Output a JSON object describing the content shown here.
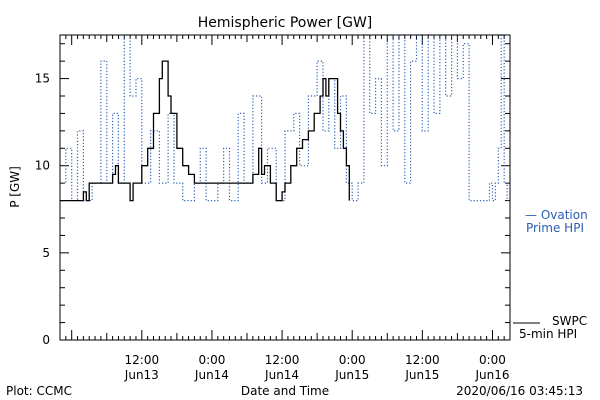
{
  "chart_data": {
    "type": "line",
    "title": "Hemispheric Power [GW]",
    "xlabel": "Date and Time",
    "ylabel": "P [GW]",
    "ylim": [
      0,
      17.5
    ],
    "yticks": [
      0,
      5,
      10,
      15
    ],
    "xlim": [
      "2020-06-12 22:00",
      "2020-06-16 03:00"
    ],
    "xticks": [
      {
        "t": "2020-06-13 12:00",
        "top": "12:00",
        "bottom": "Jun13"
      },
      {
        "t": "2020-06-14 00:00",
        "top": "0:00",
        "bottom": "Jun14"
      },
      {
        "t": "2020-06-14 12:00",
        "top": "12:00",
        "bottom": "Jun14"
      },
      {
        "t": "2020-06-15 00:00",
        "top": "0:00",
        "bottom": "Jun15"
      },
      {
        "t": "2020-06-15 12:00",
        "top": "12:00",
        "bottom": "Jun15"
      },
      {
        "t": "2020-06-16 00:00",
        "top": "0:00",
        "bottom": "Jun16"
      }
    ],
    "legend_placement": "right",
    "series": [
      {
        "name": "SWPC 5-min HPI",
        "legend_lines": [
          "SWPC",
          "5-min HPI"
        ],
        "color": "#000000",
        "style": "solid",
        "points": [
          [
            "2020-06-12 22:00",
            8
          ],
          [
            "2020-06-13 01:30",
            8
          ],
          [
            "2020-06-13 02:00",
            8.5
          ],
          [
            "2020-06-13 02:30",
            8
          ],
          [
            "2020-06-13 03:00",
            9
          ],
          [
            "2020-06-13 06:30",
            9
          ],
          [
            "2020-06-13 07:00",
            9.5
          ],
          [
            "2020-06-13 07:30",
            10
          ],
          [
            "2020-06-13 08:00",
            9
          ],
          [
            "2020-06-13 09:30",
            9
          ],
          [
            "2020-06-13 10:00",
            8
          ],
          [
            "2020-06-13 10:30",
            9
          ],
          [
            "2020-06-13 12:00",
            10
          ],
          [
            "2020-06-13 13:00",
            11
          ],
          [
            "2020-06-13 14:00",
            13
          ],
          [
            "2020-06-13 15:00",
            15
          ],
          [
            "2020-06-13 15:30",
            16
          ],
          [
            "2020-06-13 16:00",
            16
          ],
          [
            "2020-06-13 16:30",
            14
          ],
          [
            "2020-06-13 17:00",
            13
          ],
          [
            "2020-06-13 18:00",
            11
          ],
          [
            "2020-06-13 19:00",
            10
          ],
          [
            "2020-06-13 20:00",
            9.5
          ],
          [
            "2020-06-13 21:00",
            9
          ],
          [
            "2020-06-14 06:00",
            9
          ],
          [
            "2020-06-14 07:00",
            9.5
          ],
          [
            "2020-06-14 08:00",
            11
          ],
          [
            "2020-06-14 08:30",
            9.5
          ],
          [
            "2020-06-14 09:00",
            10
          ],
          [
            "2020-06-14 10:00",
            9
          ],
          [
            "2020-06-14 11:00",
            8
          ],
          [
            "2020-06-14 12:00",
            8.5
          ],
          [
            "2020-06-14 12:30",
            9
          ],
          [
            "2020-06-14 13:30",
            10
          ],
          [
            "2020-06-14 14:30",
            11
          ],
          [
            "2020-06-14 15:30",
            11.5
          ],
          [
            "2020-06-14 16:30",
            12
          ],
          [
            "2020-06-14 17:30",
            13
          ],
          [
            "2020-06-14 18:30",
            14
          ],
          [
            "2020-06-14 19:00",
            15
          ],
          [
            "2020-06-14 19:30",
            14
          ],
          [
            "2020-06-14 20:00",
            15
          ],
          [
            "2020-06-14 21:00",
            15
          ],
          [
            "2020-06-14 21:30",
            13
          ],
          [
            "2020-06-14 22:00",
            12
          ],
          [
            "2020-06-14 22:30",
            11
          ],
          [
            "2020-06-14 23:00",
            10
          ],
          [
            "2020-06-14 23:30",
            8
          ]
        ]
      },
      {
        "name": "Ovation Prime HPI",
        "legend_lines": [
          "— Ovation",
          "Prime HPI"
        ],
        "color": "#2b5fb3",
        "style": "dotted",
        "points": [
          [
            "2020-06-12 22:00",
            9
          ],
          [
            "2020-06-12 23:00",
            11
          ],
          [
            "2020-06-13 00:00",
            8
          ],
          [
            "2020-06-13 01:00",
            12
          ],
          [
            "2020-06-13 02:00",
            8
          ],
          [
            "2020-06-13 03:30",
            9
          ],
          [
            "2020-06-13 05:00",
            16
          ],
          [
            "2020-06-13 06:00",
            9
          ],
          [
            "2020-06-13 07:00",
            13
          ],
          [
            "2020-06-13 08:00",
            9
          ],
          [
            "2020-06-13 09:00",
            17.5
          ],
          [
            "2020-06-13 10:00",
            14
          ],
          [
            "2020-06-13 11:00",
            15
          ],
          [
            "2020-06-13 12:00",
            9
          ],
          [
            "2020-06-13 13:30",
            12
          ],
          [
            "2020-06-13 15:00",
            9
          ],
          [
            "2020-06-13 16:30",
            13
          ],
          [
            "2020-06-13 17:30",
            9
          ],
          [
            "2020-06-13 19:00",
            8
          ],
          [
            "2020-06-13 21:00",
            9
          ],
          [
            "2020-06-13 22:00",
            11
          ],
          [
            "2020-06-13 23:00",
            8
          ],
          [
            "2020-06-14 01:00",
            9
          ],
          [
            "2020-06-14 02:00",
            11
          ],
          [
            "2020-06-14 03:00",
            8
          ],
          [
            "2020-06-14 04:30",
            13
          ],
          [
            "2020-06-14 05:30",
            9
          ],
          [
            "2020-06-14 07:00",
            14
          ],
          [
            "2020-06-14 08:30",
            9
          ],
          [
            "2020-06-14 09:30",
            11
          ],
          [
            "2020-06-14 11:00",
            8
          ],
          [
            "2020-06-14 12:30",
            12
          ],
          [
            "2020-06-14 14:00",
            13
          ],
          [
            "2020-06-14 15:00",
            10
          ],
          [
            "2020-06-14 16:30",
            14
          ],
          [
            "2020-06-14 18:00",
            16
          ],
          [
            "2020-06-14 19:00",
            12
          ],
          [
            "2020-06-14 20:00",
            15
          ],
          [
            "2020-06-14 21:00",
            11
          ],
          [
            "2020-06-14 22:00",
            14
          ],
          [
            "2020-06-14 23:00",
            9
          ],
          [
            "2020-06-15 00:00",
            8
          ],
          [
            "2020-06-15 01:00",
            9
          ],
          [
            "2020-06-15 02:00",
            17.5
          ],
          [
            "2020-06-15 03:00",
            13
          ],
          [
            "2020-06-15 04:00",
            15
          ],
          [
            "2020-06-15 05:00",
            10
          ],
          [
            "2020-06-15 06:00",
            17.5
          ],
          [
            "2020-06-15 07:00",
            12
          ],
          [
            "2020-06-15 08:00",
            17.5
          ],
          [
            "2020-06-15 09:00",
            9
          ],
          [
            "2020-06-15 10:00",
            16
          ],
          [
            "2020-06-15 11:00",
            17.5
          ],
          [
            "2020-06-15 12:00",
            12
          ],
          [
            "2020-06-15 13:00",
            17.5
          ],
          [
            "2020-06-15 14:00",
            13
          ],
          [
            "2020-06-15 15:00",
            17.5
          ],
          [
            "2020-06-15 16:00",
            14
          ],
          [
            "2020-06-15 17:00",
            17.5
          ],
          [
            "2020-06-15 18:00",
            15
          ],
          [
            "2020-06-15 19:00",
            17
          ],
          [
            "2020-06-15 20:00",
            8
          ],
          [
            "2020-06-15 23:00",
            8
          ],
          [
            "2020-06-15 23:30",
            9
          ],
          [
            "2020-06-16 00:00",
            8
          ],
          [
            "2020-06-16 00:30",
            9
          ],
          [
            "2020-06-16 01:00",
            11
          ],
          [
            "2020-06-16 01:30",
            17.5
          ],
          [
            "2020-06-16 02:00",
            9
          ],
          [
            "2020-06-16 02:30",
            8
          ],
          [
            "2020-06-16 03:00",
            8
          ]
        ]
      }
    ]
  },
  "footer": {
    "left": "Plot: CCMC",
    "right": "2020/06/16 03:45:13"
  }
}
